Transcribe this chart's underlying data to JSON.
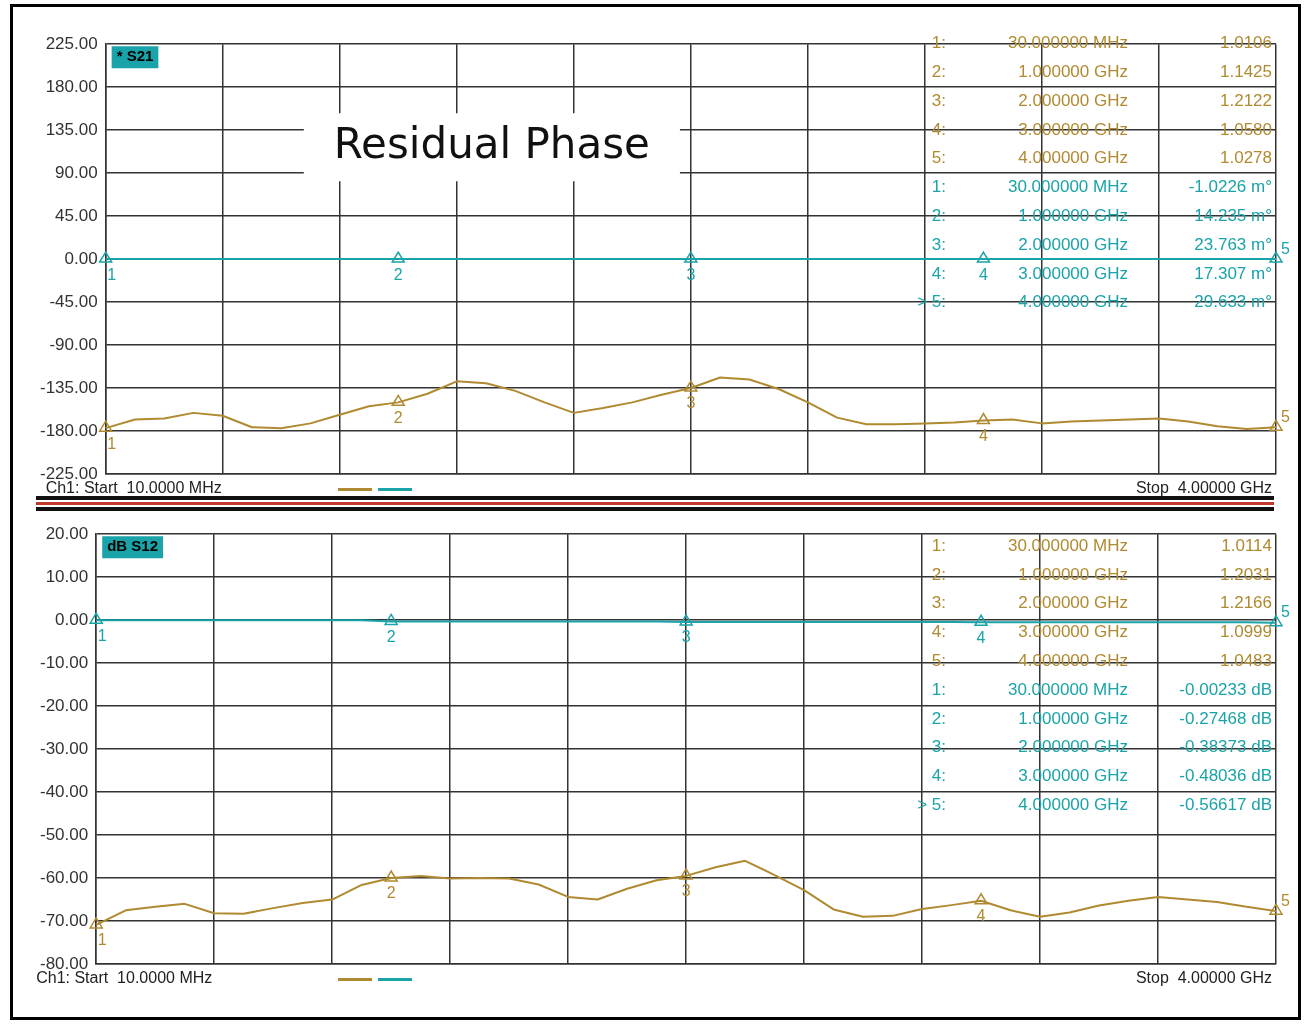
{
  "chart_data": [
    {
      "type": "line",
      "title": "Residual Phase",
      "categories": [
        null,
        null,
        null,
        null,
        null,
        null,
        null,
        null,
        null,
        null,
        null,
        null,
        null,
        null,
        null,
        null,
        null,
        null,
        null,
        null,
        null,
        null,
        null,
        null,
        null,
        null,
        null,
        null,
        null,
        null,
        null,
        null,
        null,
        null,
        null,
        null,
        null,
        null,
        null,
        null,
        null
      ],
      "ylim": [
        -225,
        225
      ],
      "yticks": [
        {
          "value": -225,
          "label": "-225.00"
        },
        {
          "value": -180,
          "label": "-180.00"
        },
        {
          "value": -135,
          "label": "-135.00"
        },
        {
          "value": -90,
          "label": "-90.00"
        },
        {
          "value": -45,
          "label": "-45.00"
        },
        {
          "value": 0,
          "label": "0.00"
        },
        {
          "value": 45,
          "label": "45.00"
        },
        {
          "value": 90,
          "label": "90.00"
        },
        {
          "value": 135,
          "label": "135.00"
        },
        {
          "value": 180,
          "label": "180.00"
        },
        {
          "value": 225,
          "label": "225.00"
        }
      ],
      "tick_labels": "y",
      "grid": true,
      "legend": false,
      "marker": "none",
      "line_style": "solid",
      "series": [
        {
          "color": "#b08a30",
          "values": [
            -177,
            -168,
            -167,
            -161,
            -164,
            -176,
            -177,
            -172,
            -163,
            -154,
            -150,
            -141,
            -128,
            -130,
            -138,
            -150,
            -161,
            -156,
            -150,
            -142,
            -135,
            -124,
            -126,
            -136,
            -150,
            -166,
            -173,
            -173,
            -172,
            -171,
            -169,
            -168,
            -172,
            -170,
            -169,
            -168,
            -167,
            -170,
            -175,
            -178,
            -176
          ]
        },
        {
          "color": "#1aa3a8",
          "values": [
            0,
            0,
            0,
            0,
            0,
            0,
            0,
            0,
            0,
            0,
            0,
            0,
            0,
            0,
            0,
            0,
            0,
            0,
            0,
            0,
            0,
            0,
            0,
            0,
            0,
            0,
            0,
            0,
            0,
            0,
            0,
            0,
            0,
            0,
            0,
            0,
            0,
            0,
            0,
            0,
            0
          ]
        }
      ],
      "annotations": [
        "* S21",
        "Ch1: Start  10.0000 MHz",
        "Stop  4.00000 GHz",
        "1:",
        "30.000000 MHz",
        "1.0106",
        "2:",
        "1.000000 GHz",
        "1.1425",
        "3:",
        "2.000000 GHz",
        "1.2122",
        "4:",
        "3.000000 GHz",
        "1.0580",
        "5:",
        "4.000000 GHz",
        "1.0278",
        "1:",
        "30.000000 MHz",
        "-1.0226 m°",
        "2:",
        "1.000000 GHz",
        "14.235 m°",
        "3:",
        "2.000000 GHz",
        "23.763 m°",
        "4:",
        "3.000000 GHz",
        "17.307 m°",
        "> 5:",
        "4.000000 GHz",
        "29.633 m°",
        {
          "text": "1",
          "y": -177
        },
        {
          "text": "2",
          "y": -150
        },
        {
          "text": "3",
          "y": -135
        },
        {
          "text": "4",
          "y": -169
        },
        {
          "text": "5",
          "y": -176
        },
        {
          "text": "1",
          "y": 0
        },
        {
          "text": "2",
          "y": 0
        },
        {
          "text": "3",
          "y": 0
        },
        {
          "text": "4",
          "y": 0
        },
        {
          "text": "5",
          "y": 0
        }
      ]
    },
    {
      "type": "line",
      "categories": [
        null,
        null,
        null,
        null,
        null,
        null,
        null,
        null,
        null,
        null,
        null,
        null,
        null,
        null,
        null,
        null,
        null,
        null,
        null,
        null,
        null,
        null,
        null,
        null,
        null,
        null,
        null,
        null,
        null,
        null,
        null,
        null,
        null,
        null,
        null,
        null,
        null,
        null,
        null,
        null,
        null
      ],
      "ylim": [
        -80,
        20
      ],
      "yticks": [
        {
          "value": -80,
          "label": "-80.00"
        },
        {
          "value": -70,
          "label": "-70.00"
        },
        {
          "value": -60,
          "label": "-60.00"
        },
        {
          "value": -50,
          "label": "-50.00"
        },
        {
          "value": -40,
          "label": "-40.00"
        },
        {
          "value": -30,
          "label": "-30.00"
        },
        {
          "value": -20,
          "label": "-20.00"
        },
        {
          "value": -10,
          "label": "-10.00"
        },
        {
          "value": 0,
          "label": "0.00"
        },
        {
          "value": 10,
          "label": "10.00"
        },
        {
          "value": 20,
          "label": "20.00"
        }
      ],
      "tick_labels": "y",
      "grid": true,
      "legend": false,
      "marker": "none",
      "line_style": "solid",
      "series": [
        {
          "color": "#b08a30",
          "values": [
            -70.9,
            -67.5,
            -66.7,
            -66,
            -68.2,
            -68.3,
            -67,
            -65.8,
            -65,
            -61.6,
            -60,
            -59.5,
            -60.1,
            -60,
            -60.1,
            -61.5,
            -64.4,
            -65,
            -62.5,
            -60.5,
            -59.5,
            -57.5,
            -56,
            -59.3,
            -62.8,
            -67.3,
            -69,
            -68.8,
            -67.2,
            -66.3,
            -65.3,
            -67.5,
            -69,
            -68,
            -66.4,
            -65.3,
            -64.4,
            -65,
            -65.6,
            -66.7,
            -67.7
          ]
        },
        {
          "color": "#1aa3a8",
          "values": [
            0,
            0,
            0,
            0,
            0,
            0,
            0,
            0,
            0,
            0,
            -0.3,
            -0.3,
            -0.3,
            -0.3,
            -0.3,
            -0.3,
            -0.3,
            -0.3,
            -0.3,
            -0.3,
            -0.4,
            -0.4,
            -0.4,
            -0.4,
            -0.4,
            -0.4,
            -0.4,
            -0.4,
            -0.4,
            -0.4,
            -0.5,
            -0.5,
            -0.5,
            -0.5,
            -0.5,
            -0.5,
            -0.5,
            -0.5,
            -0.5,
            -0.5,
            -0.6
          ]
        }
      ],
      "annotations": [
        "dB S12",
        "Ch1: Start  10.0000 MHz",
        "Stop  4.00000 GHz",
        "1:",
        "30.000000 MHz",
        "1.0114",
        "2:",
        "1.000000 GHz",
        "1.2031",
        "3:",
        "2.000000 GHz",
        "1.2166",
        "4:",
        "3.000000 GHz",
        "1.0999",
        "5:",
        "4.000000 GHz",
        "1.0483",
        "1:",
        "30.000000 MHz",
        "-0.00233 dB",
        "2:",
        "1.000000 GHz",
        "-0.27468 dB",
        "3:",
        "2.000000 GHz",
        "-0.38373 dB",
        "4:",
        "3.000000 GHz",
        "-0.48036 dB",
        "> 5:",
        "4.000000 GHz",
        "-0.56617 dB",
        {
          "text": "1",
          "y": -70.9
        },
        {
          "text": "2",
          "y": -60
        },
        {
          "text": "3",
          "y": -59.5
        },
        {
          "text": "4",
          "y": -65.3
        },
        {
          "text": "5",
          "y": -67.7
        },
        {
          "text": "1",
          "y": 0
        },
        {
          "text": "2",
          "y": -0.3
        },
        {
          "text": "3",
          "y": -0.4
        },
        {
          "text": "4",
          "y": -0.5
        },
        {
          "text": "5",
          "y": -0.6
        }
      ]
    }
  ]
}
